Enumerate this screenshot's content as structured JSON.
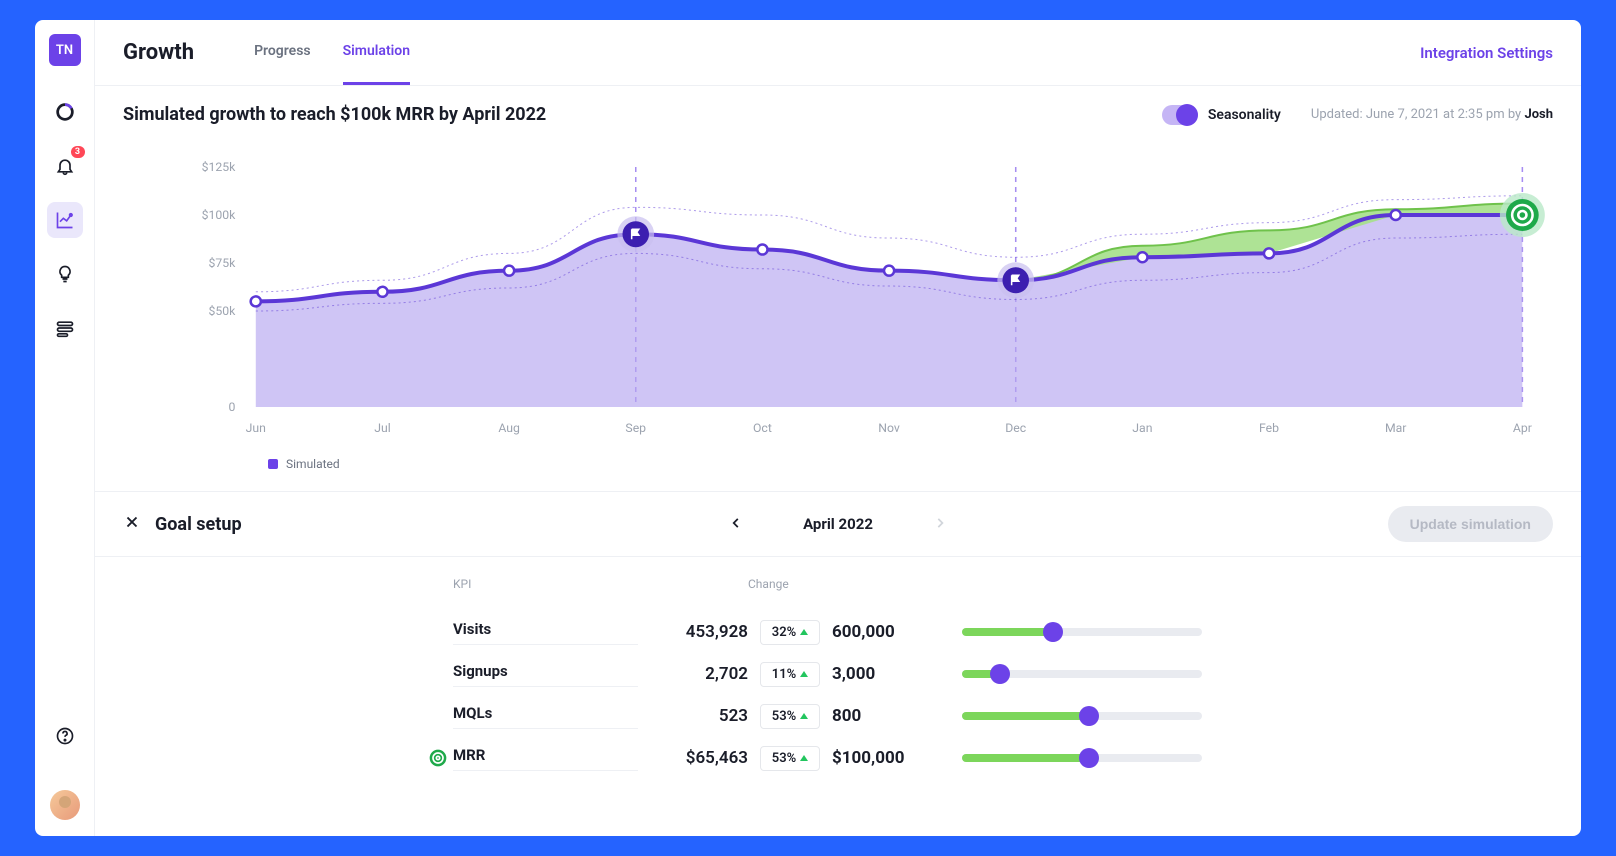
{
  "logo": "TN",
  "sidebar": {
    "notifications_badge": "3"
  },
  "header": {
    "title": "Growth",
    "tabs": [
      "Progress",
      "Simulation"
    ],
    "active_tab": 1,
    "link": "Integration Settings"
  },
  "subheader": {
    "title": "Simulated growth to reach $100k MRR by April 2022",
    "toggle_label": "Seasonality",
    "updated_prefix": "Updated: ",
    "updated_date": "June 7, 2021 at 2:35 pm",
    "updated_by_prefix": " by ",
    "updated_author": "Josh"
  },
  "chart": {
    "x_labels": [
      "Jun",
      "Jul",
      "Aug",
      "Sep",
      "Oct",
      "Nov",
      "Dec",
      "Jan",
      "Feb",
      "Mar",
      "Apr"
    ],
    "y_labels": [
      "0",
      "$50k",
      "$75k",
      "$100k",
      "$125k"
    ],
    "y_values": [
      0,
      50,
      75,
      100,
      125
    ],
    "series_main": [
      55,
      60,
      71,
      90,
      82,
      71,
      66,
      78,
      80,
      100,
      100
    ],
    "series_green_start_idx": 5,
    "series_green": [
      71,
      66,
      84,
      92,
      103,
      106
    ],
    "upper_band": [
      60,
      66,
      80,
      104,
      100,
      88,
      78,
      90,
      96,
      108,
      110
    ],
    "lower_band": [
      50,
      54,
      62,
      80,
      72,
      63,
      56,
      66,
      70,
      88,
      90
    ],
    "markers": [
      0,
      1,
      2,
      3,
      4,
      5,
      6,
      7,
      8,
      9,
      10
    ],
    "flag_points": [
      3,
      6
    ],
    "target_point": 10,
    "colors": {
      "line": "#5b37d6",
      "area": "#b6a6ef",
      "green_fill": "#a5e08a",
      "green_line": "#6fc24b",
      "marker_fill": "#ffffff",
      "marker_stroke": "#5b37d6",
      "flag_fill": "#3c1fb0",
      "flag_halo": "#c9bff0",
      "target_fill": "#1fa94a",
      "target_halo": "#b9e9c8",
      "grid": "#e5e7eb",
      "axis_text": "#9ca3af",
      "dashed_line": "#6c42e8"
    },
    "legend": "Simulated"
  },
  "goal": {
    "title": "Goal setup",
    "month": "April 2022",
    "update_label": "Update simulation",
    "columns": {
      "kpi": "KPI",
      "change": "Change"
    },
    "rows": [
      {
        "name": "Visits",
        "current": "453,928",
        "change": "32%",
        "target": "600,000",
        "slider_pct": 38
      },
      {
        "name": "Signups",
        "current": "2,702",
        "change": "11%",
        "target": "3,000",
        "slider_pct": 16
      },
      {
        "name": "MQLs",
        "current": "523",
        "change": "53%",
        "target": "800",
        "slider_pct": 53
      },
      {
        "name": "MRR",
        "current": "$65,463",
        "change": "53%",
        "target": "$100,000",
        "slider_pct": 53,
        "has_target_icon": true
      }
    ]
  }
}
